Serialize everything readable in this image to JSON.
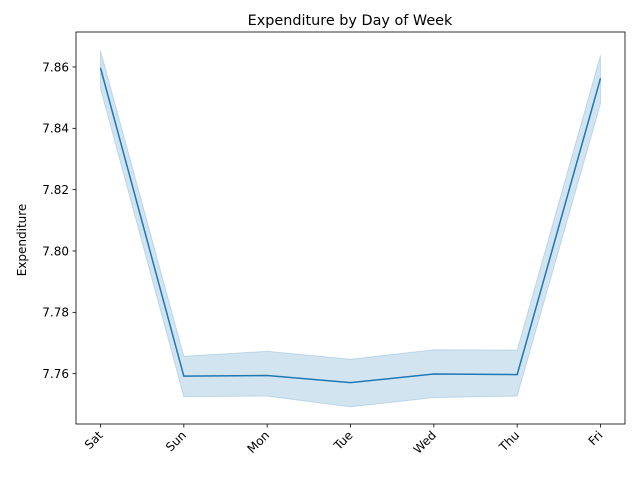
{
  "chart_data": {
    "type": "line",
    "title": "Expenditure by Day of Week",
    "xlabel": "",
    "ylabel": "Expenditure",
    "categories": [
      "Sat",
      "Sun",
      "Mon",
      "Tue",
      "Wed",
      "Thu",
      "Fri"
    ],
    "series": [
      {
        "values": [
          7.8597,
          7.7592,
          7.7594,
          7.7571,
          7.7599,
          7.7597,
          7.8563
        ],
        "ci_low": [
          7.853,
          7.7525,
          7.7527,
          7.7492,
          7.7522,
          7.7527,
          7.848
        ],
        "ci_high": [
          7.8653,
          7.7657,
          7.7673,
          7.7647,
          7.7678,
          7.7677,
          7.8638
        ],
        "color": "#1f77b4",
        "band_color": "#1f77b4"
      }
    ],
    "yticks": [
      7.76,
      7.78,
      7.8,
      7.82,
      7.84,
      7.86
    ],
    "ytick_labels": [
      "7.76",
      "7.78",
      "7.80",
      "7.82",
      "7.84",
      "7.86"
    ],
    "ylim": [
      7.7436,
      7.8714
    ],
    "grid": false,
    "legend": "none"
  }
}
